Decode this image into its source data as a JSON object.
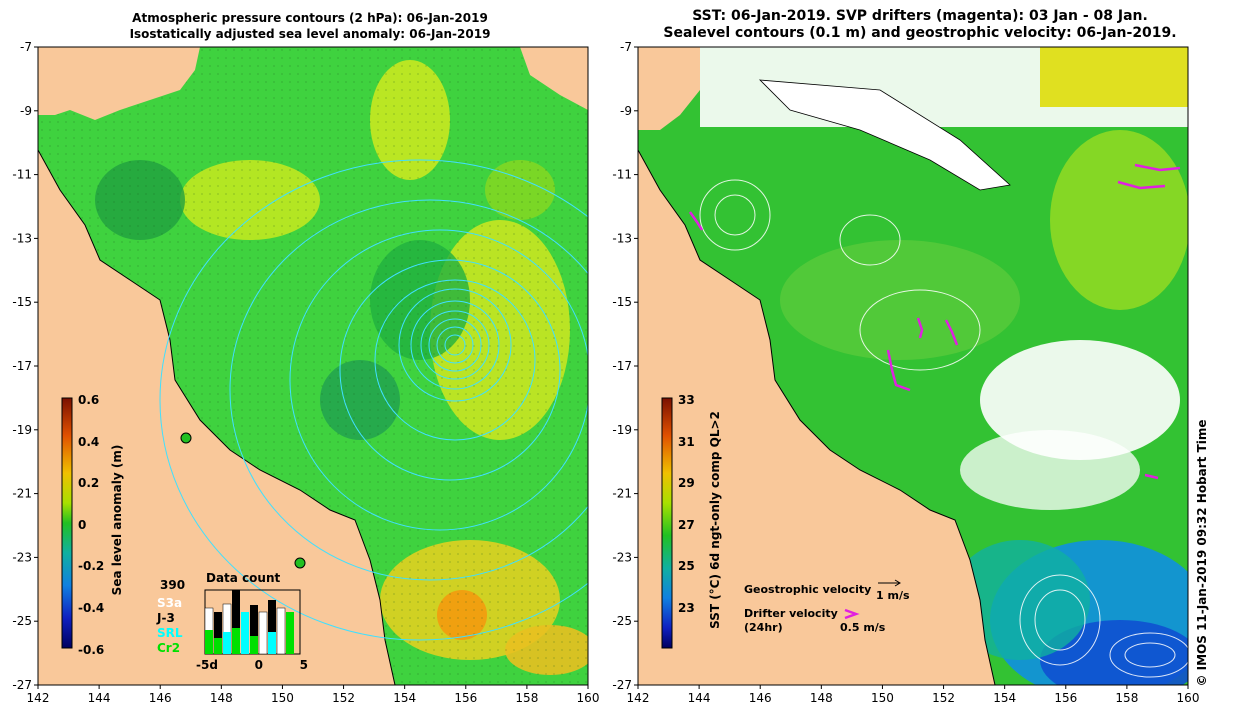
{
  "left_panel": {
    "title_line1": "Atmospheric pressure contours (2 hPa): 06-Jan-2019",
    "title_line2": "Isostatically adjusted sea level anomaly: 06-Jan-2019",
    "colorbar_label": "Sea level anomaly (m)",
    "colorbar_ticks": [
      "0.6",
      "0.4",
      "0.2",
      "0",
      "-0.2",
      "-0.4",
      "-0.6"
    ],
    "data_count": {
      "title": "Data count",
      "total": "390",
      "legend": [
        {
          "label": "S3a",
          "color": "#ffffff"
        },
        {
          "label": "J-3",
          "color": "#000000"
        },
        {
          "label": "SRL",
          "color": "#00ffff"
        },
        {
          "label": "Cr2",
          "color": "#00e000"
        }
      ],
      "xaxis": [
        "-5d",
        "0",
        "5"
      ]
    }
  },
  "right_panel": {
    "title_line1": "SST: 06-Jan-2019. SVP drifters (magenta): 03 Jan - 08 Jan.",
    "title_line2": "Sealevel contours (0.1 m) and geostrophic velocity: 06-Jan-2019.",
    "colorbar_label": "SST (°C) 6d ngt-only comp QL>2",
    "colorbar_ticks": [
      "33",
      "31",
      "29",
      "27",
      "25",
      "23"
    ],
    "geostrophic_label": "Geostrophic velocity",
    "geostrophic_scale": "1 m/s",
    "drifter_label_1": "Drifter velocity",
    "drifter_label_2": "(24hr)",
    "drifter_scale": "0.5 m/s",
    "credit": "© IMOS 11-Jan-2019 09:32 Hobart Time"
  },
  "axes": {
    "x_ticks": [
      "142",
      "144",
      "146",
      "148",
      "150",
      "152",
      "154",
      "156",
      "158",
      "160"
    ],
    "y_ticks": [
      "-7",
      "-9",
      "-11",
      "-13",
      "-15",
      "-17",
      "-19",
      "-21",
      "-23",
      "-25",
      "-27"
    ]
  },
  "colors": {
    "land": "#f9c89a",
    "sla_base": "#3fd23f",
    "sst_base": "#33c233",
    "contour_left": "#40e0ff",
    "contour_right": "#ffffff",
    "drifter": "#e020e0"
  }
}
